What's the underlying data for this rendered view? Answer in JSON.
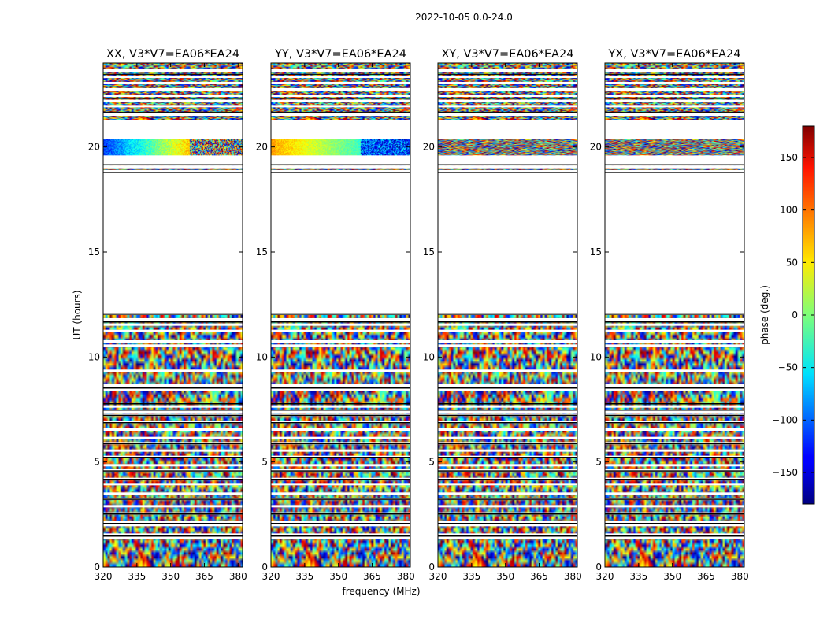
{
  "chart_data": {
    "type": "heatmap",
    "suptitle": "2022-10-05 0.0-24.0",
    "xlabel": "frequency (MHz)",
    "ylabel": "UT (hours)",
    "xlim": [
      320,
      382
    ],
    "ylim": [
      0,
      24
    ],
    "xticks": [
      "320",
      "335",
      "350",
      "365",
      "380"
    ],
    "xtick_values": [
      320,
      335,
      350,
      365,
      380
    ],
    "yticks": [
      "0",
      "5",
      "10",
      "15",
      "20"
    ],
    "ytick_values": [
      0,
      5,
      10,
      15,
      20
    ],
    "panels": [
      {
        "title": "XX, V3*V7=EA06*EA24",
        "coherent_20h": "phase_ramp_blue_to_red"
      },
      {
        "title": "YY, V3*V7=EA06*EA24",
        "coherent_20h": "phase_ramp_orange_to_cyan"
      },
      {
        "title": "XY, V3*V7=EA06*EA24",
        "coherent_20h": "noise"
      },
      {
        "title": "YX, V3*V7=EA06*EA24",
        "coherent_20h": "noise"
      }
    ],
    "flagged_time_ranges_hours": [
      [
        12.0,
        18.8
      ],
      [
        20.4,
        21.3
      ]
    ],
    "colorbar": {
      "label": "phase (deg.)",
      "range": [
        -180,
        180
      ],
      "ticks": [
        "150",
        "100",
        "50",
        "0",
        "−50",
        "−100",
        "−150"
      ],
      "tick_values": [
        150,
        100,
        50,
        0,
        -50,
        -100,
        -150
      ],
      "colormap": "jet"
    }
  }
}
